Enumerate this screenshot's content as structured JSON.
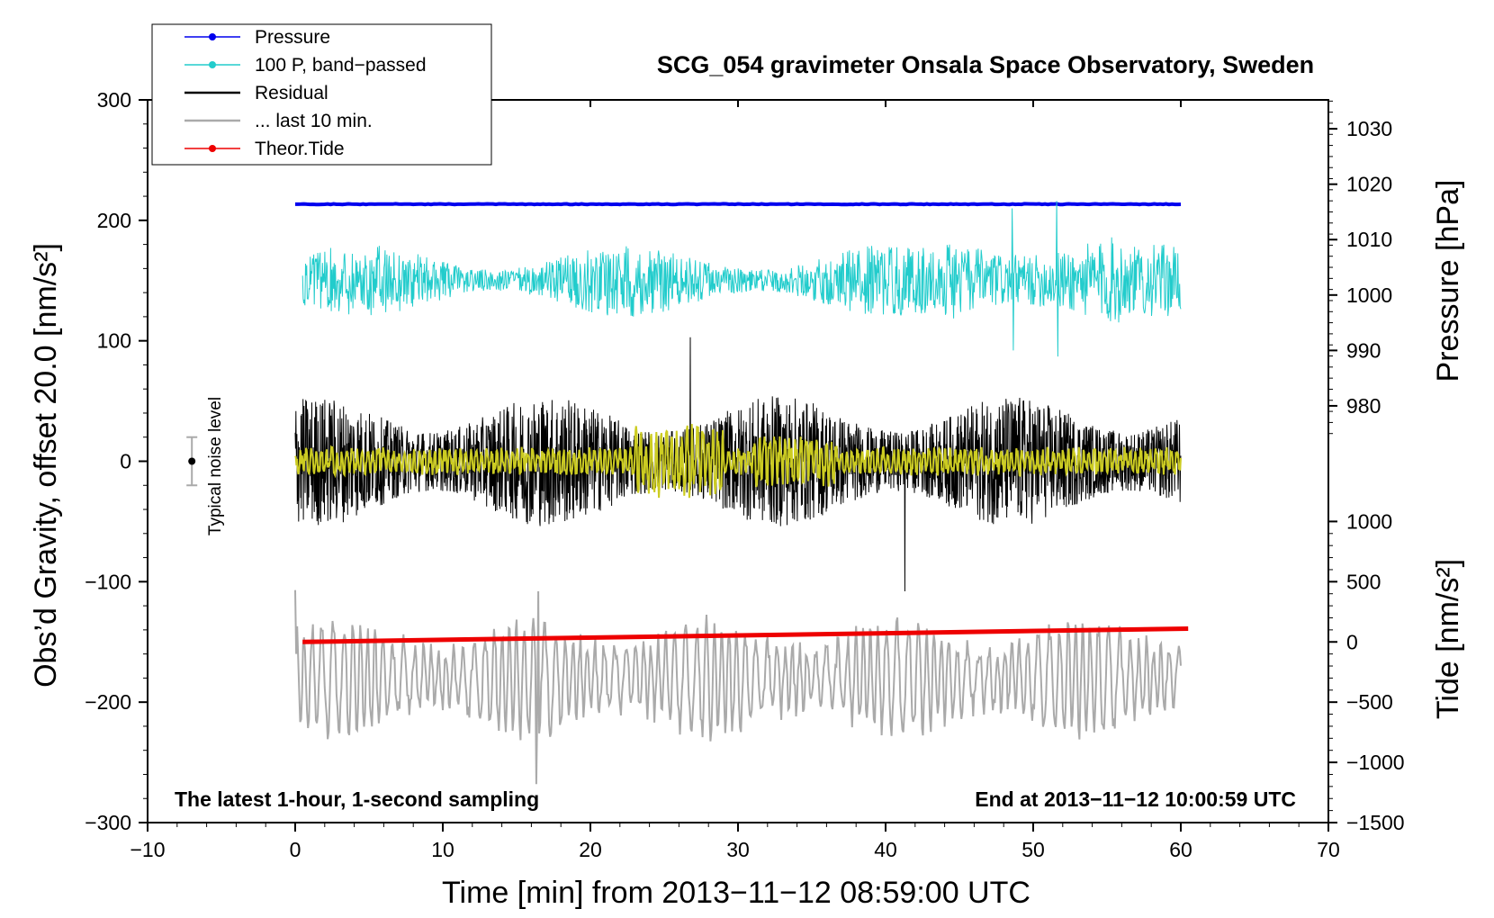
{
  "chart_data": {
    "type": "line",
    "title": "SCG_054 gravimeter Onsala Space Observatory, Sweden",
    "xlabel": "Time [min] from 2013−11−12 08:59:00 UTC",
    "ylabel_left": "Obs’d Gravity, offset 20.0 [nm/s²]",
    "ylabel_right_top": "Pressure [hPa]",
    "ylabel_right_bottom": "Tide [nm/s²]",
    "xlim": [
      -10,
      70
    ],
    "ylim_left": [
      -300,
      300
    ],
    "x_ticks": [
      "−10",
      "0",
      "10",
      "20",
      "30",
      "40",
      "50",
      "60",
      "70"
    ],
    "y_ticks_left": [
      "300",
      "200",
      "100",
      "0",
      "−100",
      "−200",
      "−300"
    ],
    "pressure_ticks": [
      "1030",
      "1020",
      "1010",
      "1000",
      "990",
      "980"
    ],
    "tide_ticks": [
      "1000",
      "500",
      "0",
      "−500",
      "−1000",
      "−1500"
    ],
    "pressure_axis": {
      "ticks": [
        1030,
        1020,
        1010,
        1000,
        990,
        980
      ],
      "left_y_at_1030": 276,
      "left_y_per_hPa": 4.6
    },
    "tide_axis": {
      "ticks": [
        1000,
        500,
        0,
        -500,
        -1000,
        -1500
      ],
      "left_y_at_0": -150,
      "left_y_per_unit": 0.1
    },
    "annotations": {
      "bottom_left": "The latest 1-hour, 1-second sampling",
      "bottom_right": "End at 2013−11−12 10:00:59 UTC",
      "noise_label": "Typical noise level"
    },
    "noise_bar": {
      "x": -7,
      "center": 0,
      "half_range": 20
    },
    "legend": [
      {
        "label": "Pressure",
        "color": "#0000ee",
        "marker": true
      },
      {
        "label": "100 P, band−passed",
        "color": "#22cccc",
        "marker": true
      },
      {
        "label": "Residual",
        "color": "#000000",
        "marker": false
      },
      {
        "label": "... last 10 min.",
        "color": "#aaaaaa",
        "marker": false
      },
      {
        "label": "Theor.Tide",
        "color": "#ee0000",
        "marker": true
      }
    ],
    "series": [
      {
        "name": "Pressure",
        "color": "#0000ee",
        "x_range": [
          0,
          60
        ],
        "units": "hPa",
        "value": 1016.4
      },
      {
        "name": "100 P, band−passed",
        "color": "#22cccc",
        "x_range": [
          0.5,
          60
        ],
        "units": "nm/s² (offset)",
        "center": 150,
        "typical_amplitude": 30,
        "min": 87,
        "max": 216
      },
      {
        "name": "Residual",
        "color": "#000000",
        "x_range": [
          0,
          60
        ],
        "units": "nm/s²",
        "center": 0,
        "typical_amplitude": 45,
        "min": -108,
        "max": 103
      },
      {
        "name": "Residual (smoothed)",
        "color": "#cccc22",
        "x_range": [
          0,
          60
        ],
        "units": "nm/s²",
        "center": 0,
        "typical_amplitude": 12
      },
      {
        "name": "... last 10 min.",
        "color": "#aaaaaa",
        "x_range": [
          0,
          60
        ],
        "units": "nm/s² (offset)",
        "center": -180,
        "typical_amplitude": 45,
        "min": -268,
        "max": -100
      },
      {
        "name": "Theor.Tide",
        "color": "#ee0000",
        "x_range": [
          0.5,
          60.5
        ],
        "units": "nm/s²",
        "start": 0,
        "end": 110
      }
    ]
  }
}
